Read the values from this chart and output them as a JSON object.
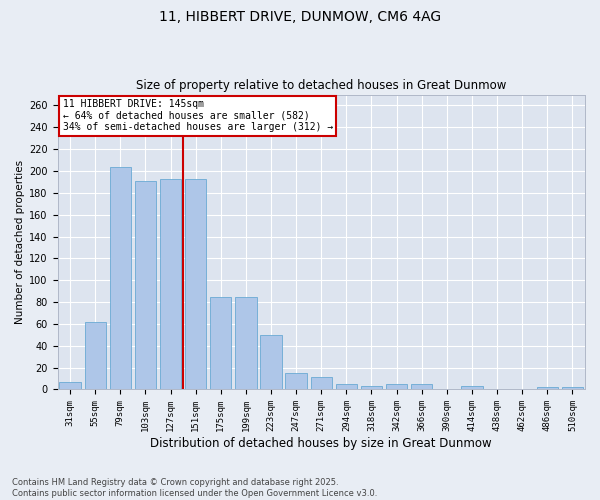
{
  "title1": "11, HIBBERT DRIVE, DUNMOW, CM6 4AG",
  "title2": "Size of property relative to detached houses in Great Dunmow",
  "xlabel": "Distribution of detached houses by size in Great Dunmow",
  "ylabel": "Number of detached properties",
  "categories": [
    "31sqm",
    "55sqm",
    "79sqm",
    "103sqm",
    "127sqm",
    "151sqm",
    "175sqm",
    "199sqm",
    "223sqm",
    "247sqm",
    "271sqm",
    "294sqm",
    "318sqm",
    "342sqm",
    "366sqm",
    "390sqm",
    "414sqm",
    "438sqm",
    "462sqm",
    "486sqm",
    "510sqm"
  ],
  "values": [
    7,
    62,
    204,
    191,
    193,
    193,
    85,
    85,
    50,
    15,
    11,
    5,
    3,
    5,
    5,
    0,
    3,
    0,
    0,
    2,
    2
  ],
  "bar_color": "#aec6e8",
  "bar_edge_color": "#6aaad4",
  "ref_line_label": "11 HIBBERT DRIVE: 145sqm",
  "annotation_line1": "← 64% of detached houses are smaller (582)",
  "annotation_line2": "34% of semi-detached houses are larger (312) →",
  "box_color": "#ffffff",
  "box_edge_color": "#cc0000",
  "ref_line_color": "#cc0000",
  "ref_line_x": 4.5,
  "ylim": [
    0,
    270
  ],
  "yticks": [
    0,
    20,
    40,
    60,
    80,
    100,
    120,
    140,
    160,
    180,
    200,
    220,
    240,
    260
  ],
  "footer1": "Contains HM Land Registry data © Crown copyright and database right 2025.",
  "footer2": "Contains public sector information licensed under the Open Government Licence v3.0.",
  "bg_color": "#e8edf4",
  "plot_bg_color": "#dde4ef",
  "grid_color": "#ffffff",
  "title1_fontsize": 10,
  "title2_fontsize": 8.5,
  "ylabel_fontsize": 7.5,
  "xlabel_fontsize": 8.5,
  "tick_fontsize": 6.5,
  "ytick_fontsize": 7,
  "annotation_fontsize": 7,
  "footer_fontsize": 6
}
